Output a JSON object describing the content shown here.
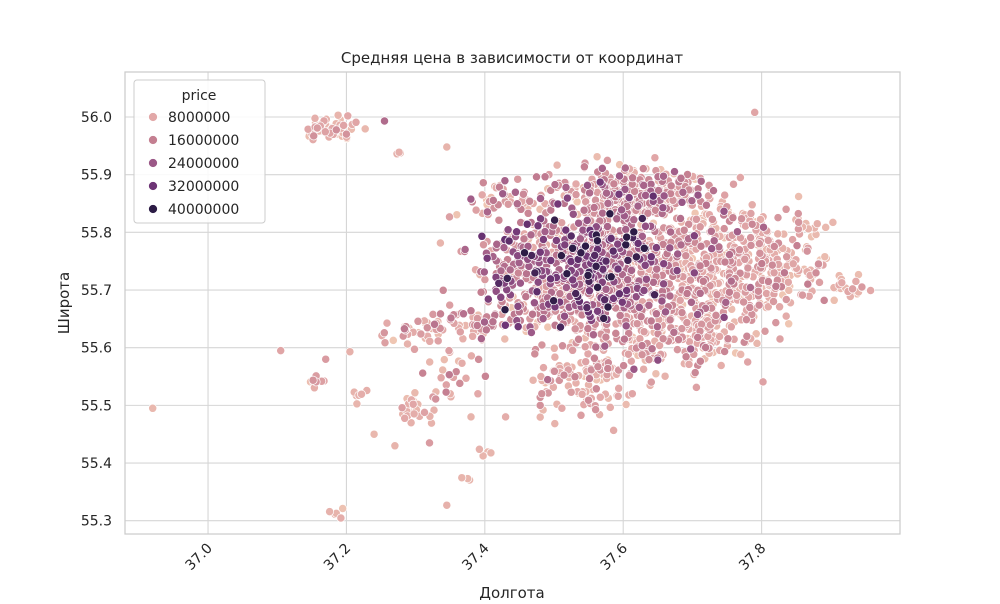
{
  "chart_data": {
    "type": "scatter",
    "title": "Средняя цена в зависимости от координат",
    "xlabel": "Долгота",
    "ylabel": "Широта",
    "xlim": [
      36.88,
      38.0
    ],
    "ylim": [
      55.277,
      56.078
    ],
    "x_ticks": [
      {
        "value": 37.0,
        "label": "37.0"
      },
      {
        "value": 37.2,
        "label": "37.2"
      },
      {
        "value": 37.4,
        "label": "37.4"
      },
      {
        "value": 37.6,
        "label": "37.6"
      },
      {
        "value": 37.8,
        "label": "37.8"
      }
    ],
    "y_ticks": [
      {
        "value": 55.3,
        "label": "55.3"
      },
      {
        "value": 55.4,
        "label": "55.4"
      },
      {
        "value": 55.5,
        "label": "55.5"
      },
      {
        "value": 55.6,
        "label": "55.6"
      },
      {
        "value": 55.7,
        "label": "55.7"
      },
      {
        "value": 55.8,
        "label": "55.8"
      },
      {
        "value": 55.9,
        "label": "55.9"
      },
      {
        "value": 56.0,
        "label": "56.0"
      }
    ],
    "grid": true,
    "legend": {
      "title": "price",
      "placement": "top-left",
      "entries": [
        {
          "label": "8000000",
          "color": "#e2a8a8"
        },
        {
          "label": "16000000",
          "color": "#c47f91"
        },
        {
          "label": "24000000",
          "color": "#9b5887"
        },
        {
          "label": "32000000",
          "color": "#6d3475"
        },
        {
          "label": "40000000",
          "color": "#2c1c45"
        }
      ]
    },
    "color_scale": {
      "min_price": 3000000,
      "max_price": 45000000,
      "stops": [
        "#efc6b3",
        "#e2a8a8",
        "#c47f91",
        "#9b5887",
        "#6d3475",
        "#2c1c45"
      ]
    },
    "outliers": [
      {
        "x": 36.92,
        "y": 55.495,
        "price": 7000000
      },
      {
        "x": 37.79,
        "y": 56.008,
        "price": 12000000
      },
      {
        "x": 37.105,
        "y": 55.595,
        "price": 12000000
      },
      {
        "x": 37.345,
        "y": 55.948,
        "price": 8000000
      },
      {
        "x": 37.345,
        "y": 55.327,
        "price": 9000000
      },
      {
        "x": 37.38,
        "y": 55.48,
        "price": 8000000
      },
      {
        "x": 37.35,
        "y": 55.52,
        "price": 9000000
      },
      {
        "x": 37.39,
        "y": 55.52,
        "price": 11000000
      },
      {
        "x": 37.32,
        "y": 55.435,
        "price": 14000000
      },
      {
        "x": 37.24,
        "y": 55.45,
        "price": 7000000
      },
      {
        "x": 37.27,
        "y": 55.43,
        "price": 8000000
      },
      {
        "x": 37.255,
        "y": 55.993,
        "price": 24000000
      },
      {
        "x": 37.48,
        "y": 55.5,
        "price": 16000000
      },
      {
        "x": 37.17,
        "y": 55.58,
        "price": 14000000
      },
      {
        "x": 37.205,
        "y": 55.593,
        "price": 9000000
      },
      {
        "x": 37.43,
        "y": 55.48,
        "price": 10000000
      }
    ],
    "clusters": [
      {
        "cx": 37.18,
        "cy": 55.978,
        "sx": 0.022,
        "sy": 0.008,
        "n": 55,
        "mean": 9000000,
        "spread": 3000000
      },
      {
        "cx": 37.275,
        "cy": 55.94,
        "sx": 0.005,
        "sy": 0.003,
        "n": 3,
        "mean": 8000000,
        "spread": 1000000
      },
      {
        "cx": 37.185,
        "cy": 55.315,
        "sx": 0.006,
        "sy": 0.004,
        "n": 5,
        "mean": 8000000,
        "spread": 2000000
      },
      {
        "cx": 37.405,
        "cy": 55.42,
        "sx": 0.006,
        "sy": 0.004,
        "n": 4,
        "mean": 8000000,
        "spread": 1000000
      },
      {
        "cx": 37.375,
        "cy": 55.373,
        "sx": 0.004,
        "sy": 0.003,
        "n": 3,
        "mean": 8000000,
        "spread": 1000000
      },
      {
        "cx": 37.155,
        "cy": 55.54,
        "sx": 0.008,
        "sy": 0.006,
        "n": 8,
        "mean": 12000000,
        "spread": 3000000
      },
      {
        "cx": 37.22,
        "cy": 55.522,
        "sx": 0.008,
        "sy": 0.006,
        "n": 6,
        "mean": 8000000,
        "spread": 2000000
      },
      {
        "cx": 37.3,
        "cy": 55.49,
        "sx": 0.016,
        "sy": 0.015,
        "n": 22,
        "mean": 9000000,
        "spread": 3000000
      },
      {
        "cx": 37.34,
        "cy": 55.55,
        "sx": 0.025,
        "sy": 0.025,
        "n": 25,
        "mean": 11000000,
        "spread": 4000000
      },
      {
        "cx": 37.3,
        "cy": 55.625,
        "sx": 0.035,
        "sy": 0.012,
        "n": 35,
        "mean": 11000000,
        "spread": 4000000
      },
      {
        "cx": 37.39,
        "cy": 55.645,
        "sx": 0.035,
        "sy": 0.012,
        "n": 60,
        "mean": 14000000,
        "spread": 6000000
      },
      {
        "cx": 37.43,
        "cy": 55.855,
        "sx": 0.035,
        "sy": 0.018,
        "n": 55,
        "mean": 14000000,
        "spread": 6000000
      },
      {
        "cx": 37.43,
        "cy": 55.74,
        "sx": 0.03,
        "sy": 0.035,
        "n": 90,
        "mean": 18000000,
        "spread": 9000000
      },
      {
        "cx": 37.555,
        "cy": 55.755,
        "sx": 0.06,
        "sy": 0.045,
        "n": 650,
        "mean": 20000000,
        "spread": 10000000
      },
      {
        "cx": 37.595,
        "cy": 55.868,
        "sx": 0.045,
        "sy": 0.022,
        "n": 220,
        "mean": 14000000,
        "spread": 6000000
      },
      {
        "cx": 37.665,
        "cy": 55.87,
        "sx": 0.035,
        "sy": 0.015,
        "n": 100,
        "mean": 14000000,
        "spread": 6000000
      },
      {
        "cx": 37.55,
        "cy": 55.675,
        "sx": 0.055,
        "sy": 0.03,
        "n": 270,
        "mean": 16000000,
        "spread": 8000000
      },
      {
        "cx": 37.52,
        "cy": 55.55,
        "sx": 0.03,
        "sy": 0.03,
        "n": 70,
        "mean": 11000000,
        "spread": 4000000
      },
      {
        "cx": 37.58,
        "cy": 55.53,
        "sx": 0.03,
        "sy": 0.025,
        "n": 40,
        "mean": 10000000,
        "spread": 3000000
      },
      {
        "cx": 37.61,
        "cy": 55.6,
        "sx": 0.03,
        "sy": 0.03,
        "n": 80,
        "mean": 13000000,
        "spread": 5000000
      },
      {
        "cx": 37.69,
        "cy": 55.745,
        "sx": 0.05,
        "sy": 0.055,
        "n": 350,
        "mean": 12000000,
        "spread": 5000000
      },
      {
        "cx": 37.7,
        "cy": 55.63,
        "sx": 0.045,
        "sy": 0.035,
        "n": 170,
        "mean": 11000000,
        "spread": 4000000
      },
      {
        "cx": 37.795,
        "cy": 55.765,
        "sx": 0.04,
        "sy": 0.04,
        "n": 200,
        "mean": 10000000,
        "spread": 4000000
      },
      {
        "cx": 37.78,
        "cy": 55.69,
        "sx": 0.035,
        "sy": 0.02,
        "n": 60,
        "mean": 10000000,
        "spread": 4000000
      },
      {
        "cx": 37.86,
        "cy": 55.73,
        "sx": 0.025,
        "sy": 0.015,
        "n": 25,
        "mean": 10000000,
        "spread": 3000000
      },
      {
        "cx": 37.925,
        "cy": 55.7,
        "sx": 0.012,
        "sy": 0.01,
        "n": 20,
        "mean": 9000000,
        "spread": 3000000
      },
      {
        "cx": 37.87,
        "cy": 55.81,
        "sx": 0.01,
        "sy": 0.006,
        "n": 8,
        "mean": 9000000,
        "spread": 2000000
      }
    ]
  }
}
